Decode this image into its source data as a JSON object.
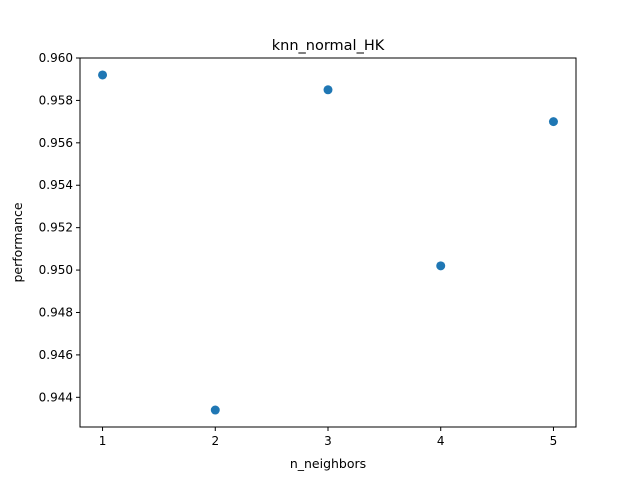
{
  "chart_data": {
    "type": "scatter",
    "title": "knn_normal_HK",
    "xlabel": "n_neighbors",
    "ylabel": "performance",
    "x": [
      1,
      2,
      3,
      4,
      5
    ],
    "y": [
      0.9592,
      0.9434,
      0.9585,
      0.9502,
      0.957
    ],
    "xlim": [
      0.8,
      5.2
    ],
    "ylim": [
      0.9426,
      0.96
    ],
    "xticks": [
      "1",
      "2",
      "3",
      "4",
      "5"
    ],
    "yticks": [
      "0.944",
      "0.946",
      "0.948",
      "0.950",
      "0.952",
      "0.954",
      "0.956",
      "0.958",
      "0.960"
    ],
    "marker_color": "#1f77b4",
    "grid": false,
    "legend": false
  }
}
